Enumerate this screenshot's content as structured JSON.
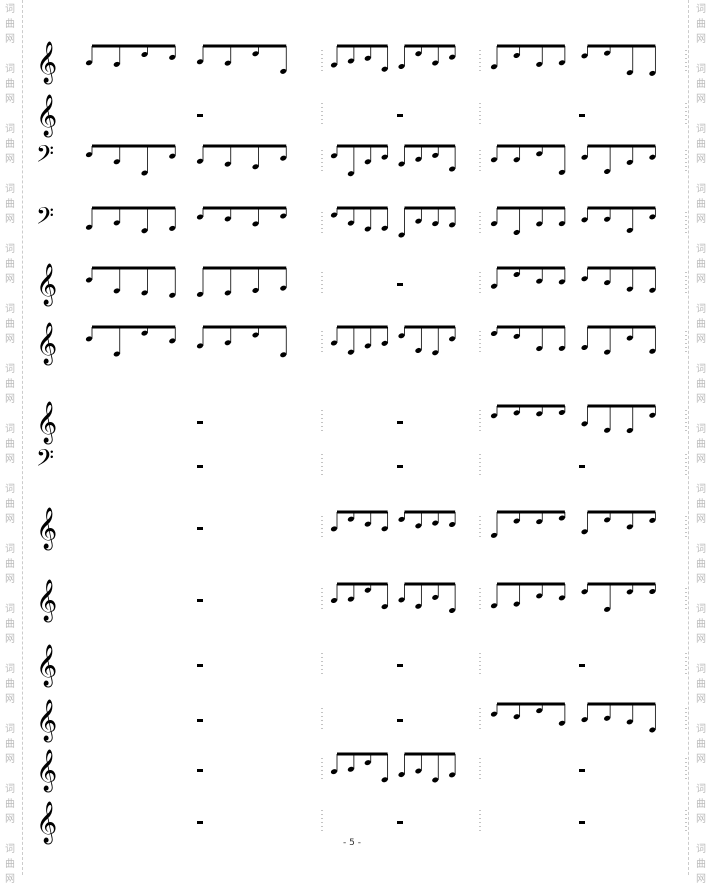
{
  "watermark": {
    "text": "词曲网",
    "color": "#bbbbbb"
  },
  "page_number": "- 5 -",
  "staves": [
    {
      "clef": "treble",
      "measures": [
        "notes",
        "notes",
        "notes"
      ]
    },
    {
      "clef": "treble",
      "measures": [
        "rest",
        "rest",
        "rest"
      ]
    },
    {
      "clef": "bass",
      "measures": [
        "notes",
        "notes",
        "notes"
      ]
    },
    {
      "clef": "bass",
      "measures": [
        "notes",
        "notes",
        "notes"
      ]
    },
    {
      "clef": "treble",
      "measures": [
        "notes",
        "rest",
        "notes"
      ]
    },
    {
      "clef": "treble",
      "measures": [
        "notes",
        "notes",
        "notes"
      ]
    },
    {
      "clef": "treble",
      "measures": [
        "rest",
        "rest",
        "notes"
      ]
    },
    {
      "clef": "bass",
      "measures": [
        "rest",
        "rest",
        "rest"
      ]
    },
    {
      "clef": "treble",
      "measures": [
        "rest",
        "notes",
        "notes"
      ]
    },
    {
      "clef": "treble",
      "measures": [
        "rest",
        "notes",
        "notes"
      ]
    },
    {
      "clef": "treble",
      "measures": [
        "rest",
        "rest",
        "rest"
      ]
    },
    {
      "clef": "treble",
      "measures": [
        "rest",
        "rest",
        "notes"
      ]
    },
    {
      "clef": "treble",
      "measures": [
        "rest",
        "notes",
        "rest"
      ]
    },
    {
      "clef": "treble",
      "measures": [
        "rest",
        "rest",
        "rest"
      ]
    }
  ]
}
